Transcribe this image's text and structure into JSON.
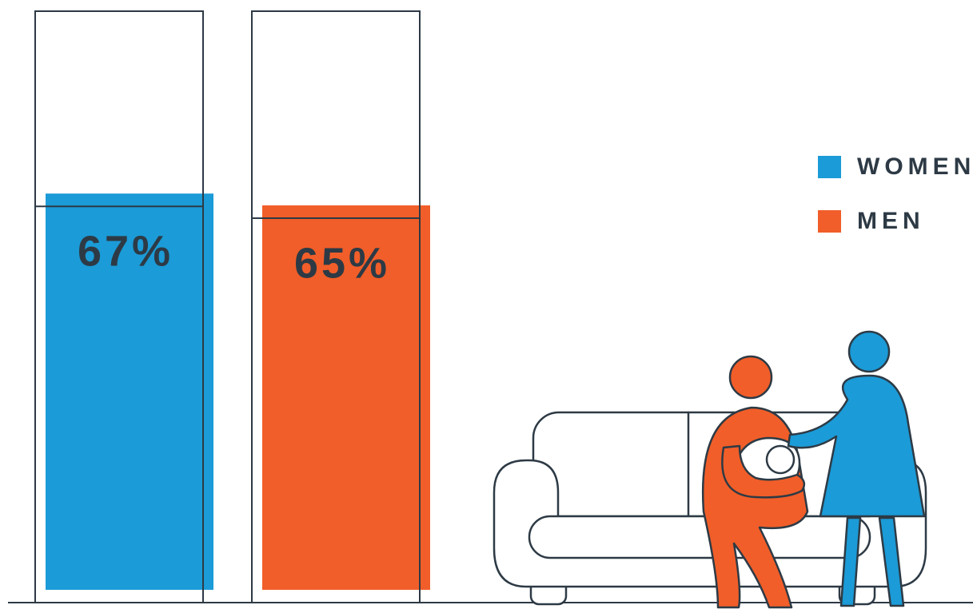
{
  "chart_data": {
    "type": "bar",
    "categories": [
      null
    ],
    "series": [
      {
        "name": "WOMEN",
        "color": "#1b9bd7",
        "values": [
          67
        ],
        "value_labels": [
          "67%"
        ]
      },
      {
        "name": "MEN",
        "color": "#f15e29",
        "values": [
          65
        ],
        "value_labels": [
          "65%"
        ]
      }
    ],
    "ylim": [
      0,
      100
    ]
  }
}
